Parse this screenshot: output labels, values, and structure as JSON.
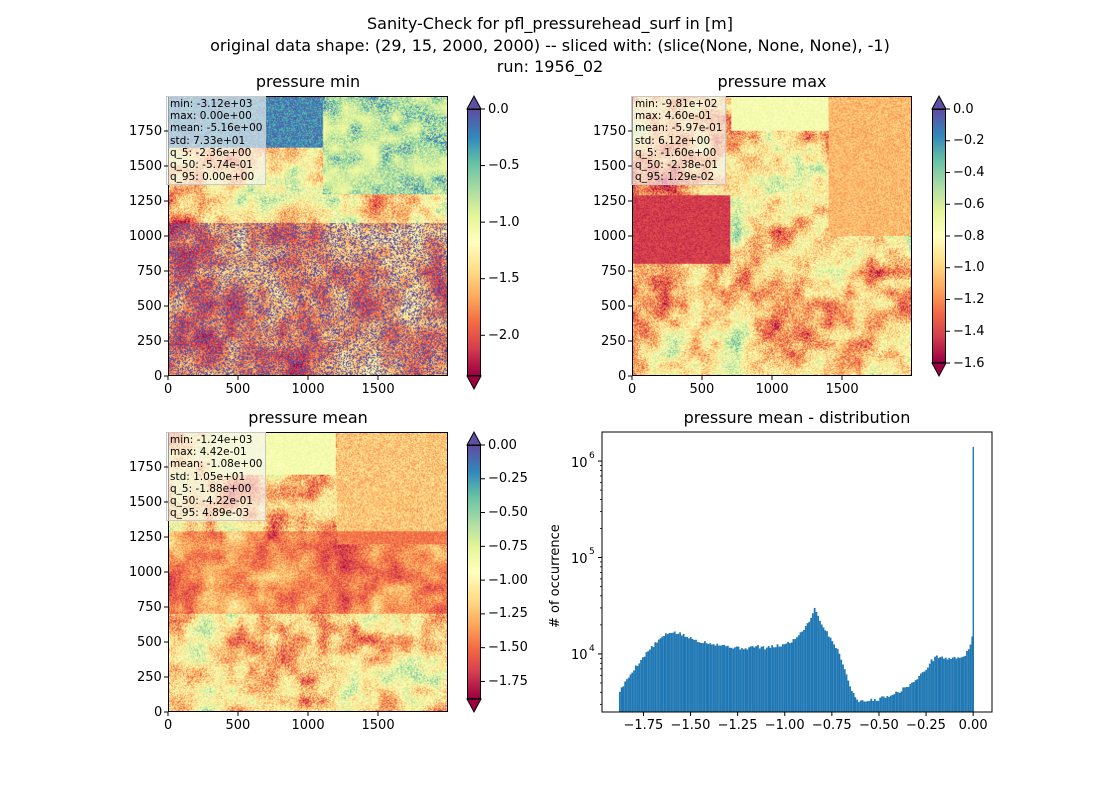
{
  "figure": {
    "title_lines": [
      "Sanity-Check for pfl_pressurehead_surf in [m]",
      "original data shape: (29, 15, 2000, 2000) -- sliced with: (slice(None, None, None), -1)",
      "run: 1956_02"
    ]
  },
  "chart_data": [
    {
      "type": "heatmap",
      "title": "pressure min",
      "xlim": [
        0,
        2000
      ],
      "ylim": [
        0,
        2000
      ],
      "xticks": [
        0,
        500,
        1000,
        1500
      ],
      "yticks": [
        0,
        250,
        500,
        750,
        1000,
        1250,
        1500,
        1750
      ],
      "colormap": "Spectral",
      "colorbar": {
        "vmin": -2.36,
        "vmax": 0.0,
        "ticks": [
          0.0,
          -0.5,
          -1.0,
          -1.5,
          -2.0
        ],
        "tick_labels": [
          "0.0",
          "−0.5",
          "−1.0",
          "−1.5",
          "−2.0"
        ],
        "extend_top_color": "#5e4fa2",
        "extend_bottom_color": "#9e0142"
      },
      "stats": [
        "min: -3.12e+03",
        "max: 0.00e+00",
        "mean: -5.16e+00",
        "std: 7.33e+01",
        "q_5: -2.36e+00",
        "q_50: -5.74e-01",
        "q_95: 0.00e+00"
      ]
    },
    {
      "type": "heatmap",
      "title": "pressure max",
      "xlim": [
        0,
        2000
      ],
      "ylim": [
        0,
        2000
      ],
      "xticks": [
        0,
        500,
        1000,
        1500
      ],
      "yticks": [
        0,
        250,
        500,
        750,
        1000,
        1250,
        1500,
        1750
      ],
      "colormap": "Spectral",
      "colorbar": {
        "vmin": -1.6,
        "vmax": 0.0,
        "ticks": [
          0.0,
          -0.2,
          -0.4,
          -0.6,
          -0.8,
          -1.0,
          -1.2,
          -1.4,
          -1.6
        ],
        "tick_labels": [
          "0.0",
          "−0.2",
          "−0.4",
          "−0.6",
          "−0.8",
          "−1.0",
          "−1.2",
          "−1.4",
          "−1.6"
        ],
        "extend_top_color": "#5e4fa2",
        "extend_bottom_color": "#9e0142"
      },
      "stats": [
        "min: -9.81e+02",
        "max: 4.60e-01",
        "mean: -5.97e-01",
        "std: 6.12e+00",
        "q_5: -1.60e+00",
        "q_50: -2.38e-01",
        "q_95: 1.29e-02"
      ]
    },
    {
      "type": "heatmap",
      "title": "pressure mean",
      "xlim": [
        0,
        2000
      ],
      "ylim": [
        0,
        2000
      ],
      "xticks": [
        0,
        500,
        1000,
        1500
      ],
      "yticks": [
        0,
        250,
        500,
        750,
        1000,
        1250,
        1500,
        1750
      ],
      "colormap": "Spectral",
      "colorbar": {
        "vmin": -1.88,
        "vmax": 0.0,
        "ticks": [
          0.0,
          -0.25,
          -0.5,
          -0.75,
          -1.0,
          -1.25,
          -1.5,
          -1.75
        ],
        "tick_labels": [
          "0.00",
          "−0.25",
          "−0.50",
          "−0.75",
          "−1.00",
          "−1.25",
          "−1.50",
          "−1.75"
        ],
        "extend_top_color": "#5e4fa2",
        "extend_bottom_color": "#9e0142"
      },
      "stats": [
        "min: -1.24e+03",
        "max: 4.42e-01",
        "mean: -1.08e+00",
        "std: 1.05e+01",
        "q_5: -1.88e+00",
        "q_50: -4.22e-01",
        "q_95: 4.89e-03"
      ]
    },
    {
      "type": "bar",
      "title": "pressure mean - distribution",
      "ylabel": "# of occurrence",
      "yscale": "log",
      "xlim": [
        -1.97,
        0.1
      ],
      "ylim": [
        2500,
        2000000
      ],
      "xticks": [
        -1.75,
        -1.5,
        -1.25,
        -1.0,
        -0.75,
        -0.5,
        -0.25,
        0.0
      ],
      "xtick_labels": [
        "−1.75",
        "−1.50",
        "−1.25",
        "−1.00",
        "−0.75",
        "−0.50",
        "−0.25",
        "0.00"
      ],
      "ytick_labels": [
        {
          "base": "10",
          "exp": "4"
        },
        {
          "base": "10",
          "exp": "5"
        },
        {
          "base": "10",
          "exp": "6"
        }
      ],
      "ytick_values": [
        10000,
        100000,
        1000000
      ],
      "bar_color": "#1f77b4",
      "bin_width": 0.0094,
      "bin_start": -1.88,
      "x": [
        -1.88,
        -1.8,
        -1.72,
        -1.65,
        -1.6,
        -1.55,
        -1.5,
        -1.45,
        -1.4,
        -1.35,
        -1.3,
        -1.25,
        -1.2,
        -1.15,
        -1.1,
        -1.05,
        -1.0,
        -0.95,
        -0.9,
        -0.87,
        -0.84,
        -0.82,
        -0.8,
        -0.77,
        -0.74,
        -0.72,
        -0.7,
        -0.68,
        -0.66,
        -0.64,
        -0.62,
        -0.6,
        -0.58,
        -0.55,
        -0.5,
        -0.45,
        -0.4,
        -0.35,
        -0.3,
        -0.25,
        -0.22,
        -0.19,
        -0.15,
        -0.1,
        -0.05,
        -0.02,
        -0.01,
        -0.003,
        0.0
      ],
      "y": [
        4000,
        7000,
        11000,
        15000,
        17000,
        16000,
        14500,
        13500,
        13000,
        12500,
        12000,
        11500,
        11500,
        12000,
        11500,
        12000,
        12500,
        14000,
        18000,
        22000,
        30000,
        24000,
        20000,
        16000,
        13000,
        11000,
        9000,
        7000,
        5000,
        4000,
        3500,
        3200,
        3200,
        3300,
        3400,
        3700,
        4000,
        4600,
        5400,
        7000,
        8500,
        9500,
        9000,
        9000,
        9500,
        11000,
        13000,
        16000,
        1400000
      ]
    }
  ]
}
